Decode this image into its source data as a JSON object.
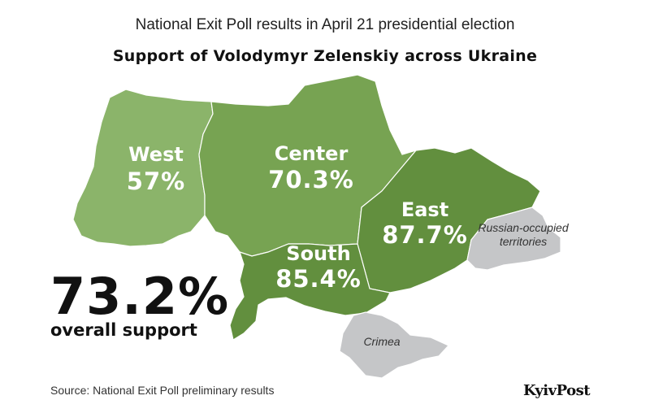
{
  "header": {
    "subtitle": "National Exit Poll results in April 21 presidential election",
    "title": "Support of Volodymyr Zelenskiy across Ukraine"
  },
  "regions": [
    {
      "name": "West",
      "value": "57%",
      "support": 57,
      "color": "#8bb46a"
    },
    {
      "name": "Center",
      "value": "70.3%",
      "support": 70.3,
      "color": "#77a352"
    },
    {
      "name": "East",
      "value": "87.7%",
      "support": 87.7,
      "color": "#628f3e"
    },
    {
      "name": "South",
      "value": "85.4%",
      "support": 85.4,
      "color": "#628f3e"
    }
  ],
  "occupied": {
    "east_label_line1": "Russian-occupied",
    "east_label_line2": "territories",
    "crimea_label": "Crimea",
    "color": "#c5c6c8"
  },
  "overall": {
    "value": "73.2%",
    "label": "overall support"
  },
  "footer": {
    "source": "Source: National Exit Poll preliminary results",
    "logo": "KyivPost"
  }
}
